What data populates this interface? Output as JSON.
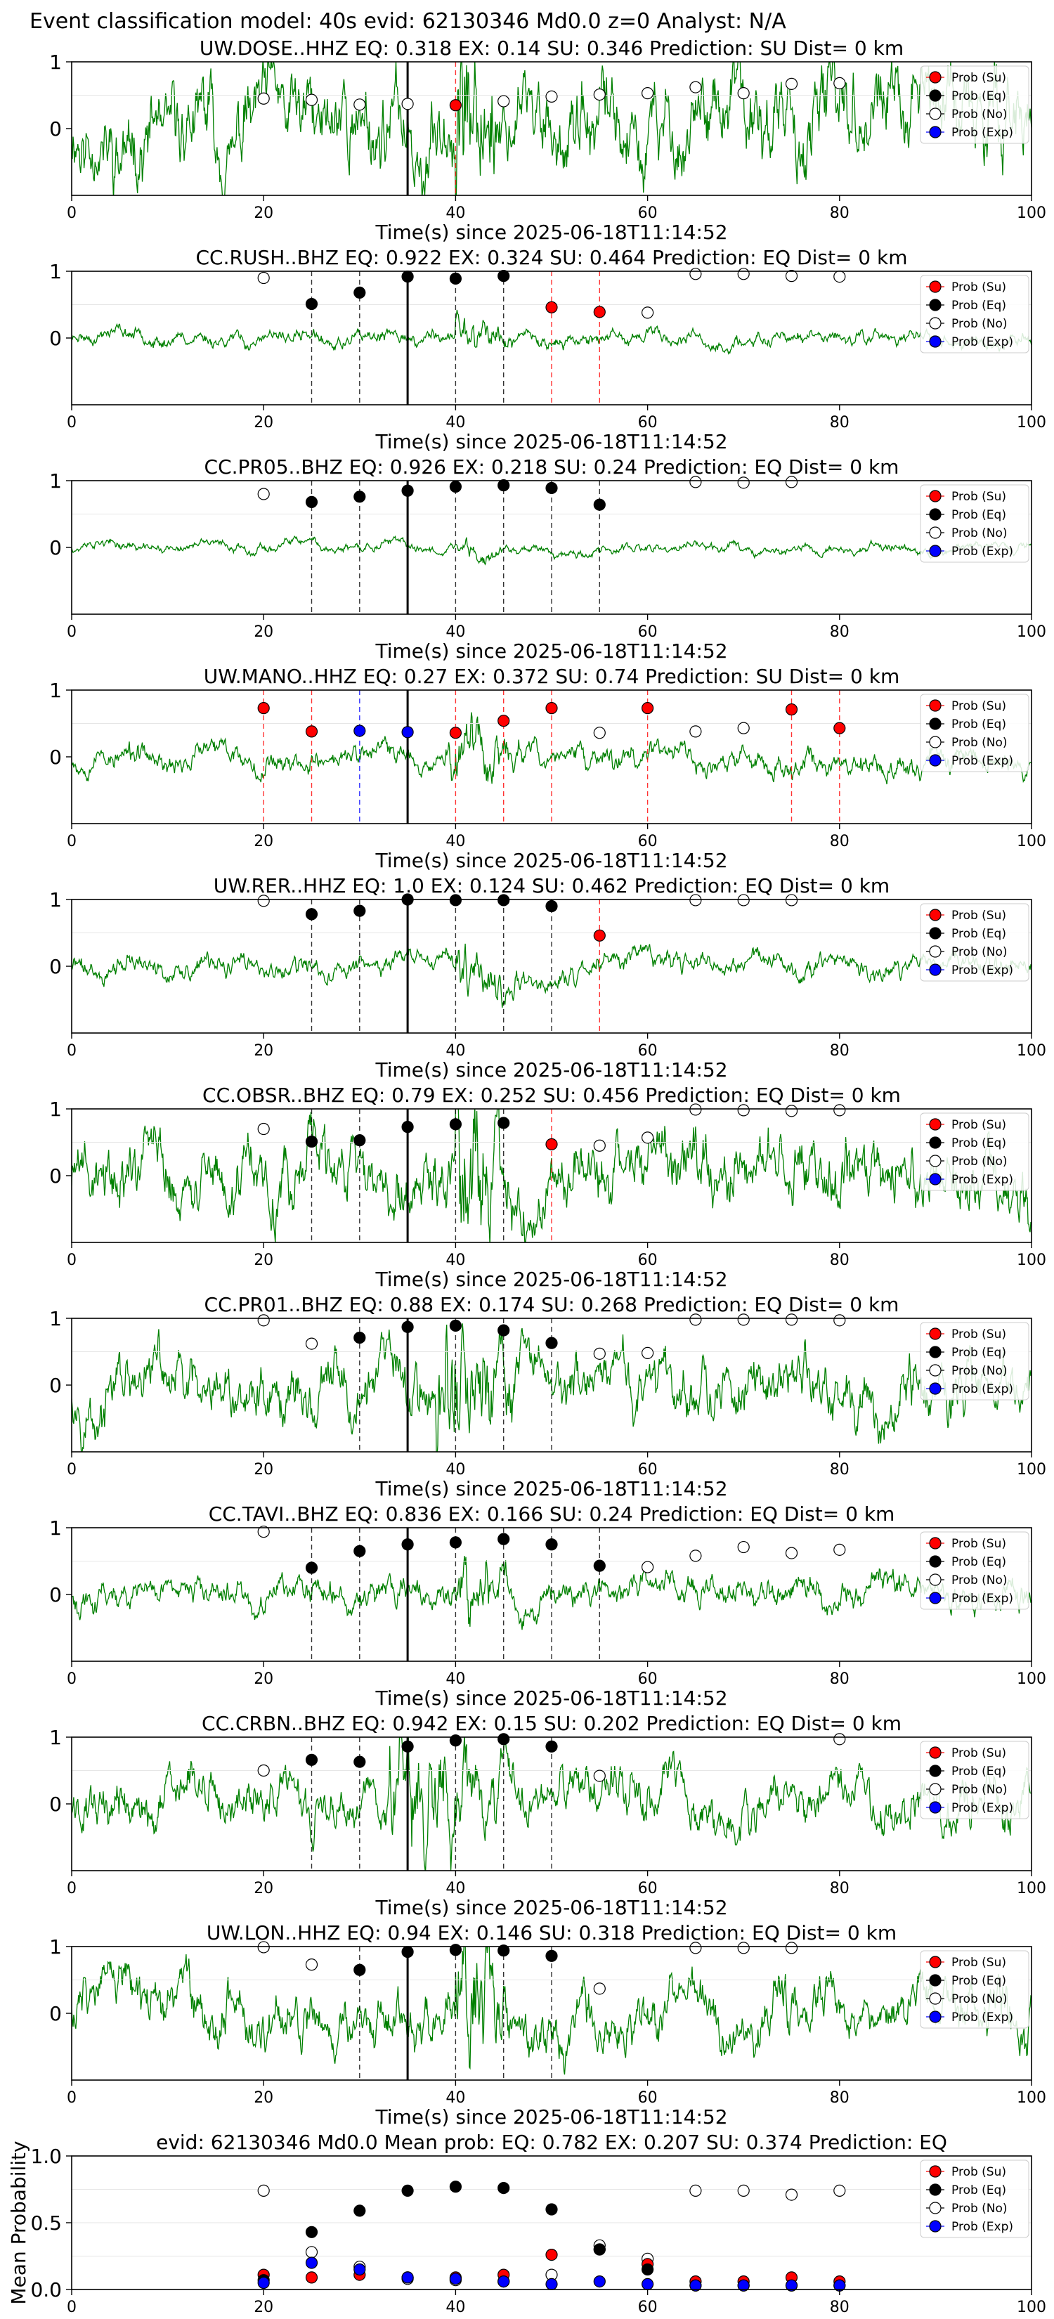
{
  "figure": {
    "suptitle": "Event classification model: 40s evid: 62130346 Md0.0 z=0 Analyst: N/A"
  },
  "legend": {
    "entries": [
      {
        "key": "su",
        "label": "Prob (Su)",
        "color": "#ff0000",
        "filled": true
      },
      {
        "key": "eq",
        "label": "Prob (Eq)",
        "color": "#000000",
        "filled": true
      },
      {
        "key": "no",
        "label": "Prob (No)",
        "color": "#ffffff",
        "filled": false
      },
      {
        "key": "exp",
        "label": "Prob (Exp)",
        "color": "#0000ff",
        "filled": true
      }
    ]
  },
  "colors": {
    "waveform": "#008000",
    "su": "#ff0000",
    "eq": "#000000",
    "exp": "#0000ff",
    "origin_line": "#000000"
  },
  "chart_data": [
    {
      "type": "line",
      "station": "UW.DOSE..HHZ",
      "title": "UW.DOSE..HHZ   EQ: 0.318  EX: 0.14  SU: 0.346   Prediction: SU    Dist= 0 km",
      "xlabel": "Time(s) since 2025-06-18T11:14:52",
      "xlim": [
        0,
        100
      ],
      "ylim": [
        -1,
        1
      ],
      "xticks": [
        "0",
        "20",
        "40",
        "60",
        "80",
        "100"
      ],
      "yticks": [
        "1",
        "0"
      ],
      "amplitude": 0.9,
      "seed": 11,
      "origin_time": 35,
      "burst": [
        [
          40,
          45
        ]
      ],
      "points": [
        {
          "t": 20,
          "p": 0.45,
          "c": "no"
        },
        {
          "t": 25,
          "p": 0.43,
          "c": "no"
        },
        {
          "t": 30,
          "p": 0.36,
          "c": "no"
        },
        {
          "t": 35,
          "p": 0.37,
          "c": "no"
        },
        {
          "t": 40,
          "p": 0.35,
          "c": "su"
        },
        {
          "t": 45,
          "p": 0.41,
          "c": "no"
        },
        {
          "t": 50,
          "p": 0.48,
          "c": "no"
        },
        {
          "t": 55,
          "p": 0.51,
          "c": "no"
        },
        {
          "t": 60,
          "p": 0.53,
          "c": "no"
        },
        {
          "t": 65,
          "p": 0.62,
          "c": "no"
        },
        {
          "t": 70,
          "p": 0.53,
          "c": "no"
        },
        {
          "t": 75,
          "p": 0.67,
          "c": "no"
        },
        {
          "t": 80,
          "p": 0.68,
          "c": "no"
        }
      ]
    },
    {
      "type": "line",
      "station": "CC.RUSH..BHZ",
      "title": "CC.RUSH..BHZ   EQ: 0.922  EX: 0.324  SU: 0.464   Prediction: EQ    Dist= 0 km",
      "xlabel": "Time(s) since 2025-06-18T11:14:52",
      "xlim": [
        0,
        100
      ],
      "ylim": [
        -1,
        1
      ],
      "xticks": [
        "0",
        "20",
        "40",
        "60",
        "80",
        "100"
      ],
      "yticks": [
        "1",
        "0"
      ],
      "amplitude": 0.15,
      "seed": 23,
      "origin_time": 35,
      "burst": [
        [
          40,
          46
        ]
      ],
      "points": [
        {
          "t": 20,
          "p": 0.9,
          "c": "no"
        },
        {
          "t": 25,
          "p": 0.51,
          "c": "eq"
        },
        {
          "t": 30,
          "p": 0.68,
          "c": "eq"
        },
        {
          "t": 35,
          "p": 0.92,
          "c": "eq"
        },
        {
          "t": 40,
          "p": 0.89,
          "c": "eq"
        },
        {
          "t": 45,
          "p": 0.93,
          "c": "eq"
        },
        {
          "t": 50,
          "p": 0.46,
          "c": "su"
        },
        {
          "t": 55,
          "p": 0.39,
          "c": "su"
        },
        {
          "t": 60,
          "p": 0.38,
          "c": "no"
        },
        {
          "t": 65,
          "p": 0.96,
          "c": "no"
        },
        {
          "t": 70,
          "p": 0.96,
          "c": "no"
        },
        {
          "t": 75,
          "p": 0.93,
          "c": "no"
        },
        {
          "t": 80,
          "p": 0.92,
          "c": "no"
        }
      ]
    },
    {
      "type": "line",
      "station": "CC.PR05..BHZ",
      "title": "CC.PR05..BHZ   EQ: 0.926  EX: 0.218  SU: 0.24   Prediction: EQ    Dist= 0 km",
      "xlabel": "Time(s) since 2025-06-18T11:14:52",
      "xlim": [
        0,
        100
      ],
      "ylim": [
        -1,
        1
      ],
      "xticks": [
        "0",
        "20",
        "40",
        "60",
        "80",
        "100"
      ],
      "yticks": [
        "1",
        "0"
      ],
      "amplitude": 0.1,
      "seed": 37,
      "origin_time": 35,
      "burst": [
        [
          41,
          45
        ]
      ],
      "points": [
        {
          "t": 20,
          "p": 0.8,
          "c": "no"
        },
        {
          "t": 25,
          "p": 0.68,
          "c": "eq"
        },
        {
          "t": 30,
          "p": 0.76,
          "c": "eq"
        },
        {
          "t": 35,
          "p": 0.85,
          "c": "eq"
        },
        {
          "t": 40,
          "p": 0.91,
          "c": "eq"
        },
        {
          "t": 45,
          "p": 0.93,
          "c": "eq"
        },
        {
          "t": 50,
          "p": 0.89,
          "c": "eq"
        },
        {
          "t": 55,
          "p": 0.64,
          "c": "eq"
        },
        {
          "t": 65,
          "p": 0.98,
          "c": "no"
        },
        {
          "t": 70,
          "p": 0.97,
          "c": "no"
        },
        {
          "t": 75,
          "p": 0.98,
          "c": "no"
        }
      ]
    },
    {
      "type": "line",
      "station": "UW.MANO..HHZ",
      "title": "UW.MANO..HHZ   EQ: 0.27  EX: 0.372  SU: 0.74   Prediction: SU    Dist= 0 km",
      "xlabel": "Time(s) since 2025-06-18T11:14:52",
      "xlim": [
        0,
        100
      ],
      "ylim": [
        -1,
        1
      ],
      "xticks": [
        "0",
        "20",
        "40",
        "60",
        "80",
        "100"
      ],
      "yticks": [
        "1",
        "0"
      ],
      "amplitude": 0.25,
      "seed": 53,
      "origin_time": 35,
      "burst": [
        [
          39,
          47
        ]
      ],
      "points": [
        {
          "t": 20,
          "p": 0.73,
          "c": "su"
        },
        {
          "t": 25,
          "p": 0.38,
          "c": "su"
        },
        {
          "t": 30,
          "p": 0.39,
          "c": "exp"
        },
        {
          "t": 35,
          "p": 0.37,
          "c": "exp"
        },
        {
          "t": 40,
          "p": 0.36,
          "c": "su"
        },
        {
          "t": 45,
          "p": 0.54,
          "c": "su"
        },
        {
          "t": 50,
          "p": 0.73,
          "c": "su"
        },
        {
          "t": 55,
          "p": 0.36,
          "c": "no"
        },
        {
          "t": 60,
          "p": 0.73,
          "c": "su"
        },
        {
          "t": 65,
          "p": 0.38,
          "c": "no"
        },
        {
          "t": 70,
          "p": 0.43,
          "c": "no"
        },
        {
          "t": 75,
          "p": 0.71,
          "c": "su"
        },
        {
          "t": 80,
          "p": 0.43,
          "c": "su"
        }
      ]
    },
    {
      "type": "line",
      "station": "UW.RER..HHZ",
      "title": "UW.RER..HHZ   EQ: 1.0  EX: 0.124  SU: 0.462   Prediction: EQ    Dist= 0 km",
      "xlabel": "Time(s) since 2025-06-18T11:14:52",
      "xlim": [
        0,
        100
      ],
      "ylim": [
        -1,
        1
      ],
      "xticks": [
        "0",
        "20",
        "40",
        "60",
        "80",
        "100"
      ],
      "yticks": [
        "1",
        "0"
      ],
      "amplitude": 0.22,
      "seed": 71,
      "origin_time": 35,
      "burst": [
        [
          40,
          47
        ]
      ],
      "points": [
        {
          "t": 20,
          "p": 0.98,
          "c": "no"
        },
        {
          "t": 25,
          "p": 0.78,
          "c": "eq"
        },
        {
          "t": 30,
          "p": 0.83,
          "c": "eq"
        },
        {
          "t": 35,
          "p": 1.0,
          "c": "eq"
        },
        {
          "t": 40,
          "p": 0.99,
          "c": "eq"
        },
        {
          "t": 45,
          "p": 0.99,
          "c": "eq"
        },
        {
          "t": 50,
          "p": 0.9,
          "c": "eq"
        },
        {
          "t": 55,
          "p": 0.46,
          "c": "su"
        },
        {
          "t": 65,
          "p": 0.99,
          "c": "no"
        },
        {
          "t": 70,
          "p": 0.99,
          "c": "no"
        },
        {
          "t": 75,
          "p": 0.99,
          "c": "no"
        }
      ]
    },
    {
      "type": "line",
      "station": "CC.OBSR..BHZ",
      "title": "CC.OBSR..BHZ   EQ: 0.79  EX: 0.252  SU: 0.456   Prediction: EQ    Dist= 0 km",
      "xlabel": "Time(s) since 2025-06-18T11:14:52",
      "xlim": [
        0,
        100
      ],
      "ylim": [
        -1,
        1
      ],
      "xticks": [
        "0",
        "20",
        "40",
        "60",
        "80",
        "100"
      ],
      "yticks": [
        "1",
        "0"
      ],
      "amplitude": 0.7,
      "seed": 89,
      "origin_time": 35,
      "burst": [
        [
          40,
          46
        ]
      ],
      "points": [
        {
          "t": 20,
          "p": 0.7,
          "c": "no"
        },
        {
          "t": 25,
          "p": 0.51,
          "c": "eq"
        },
        {
          "t": 30,
          "p": 0.53,
          "c": "eq"
        },
        {
          "t": 35,
          "p": 0.73,
          "c": "eq"
        },
        {
          "t": 40,
          "p": 0.77,
          "c": "eq"
        },
        {
          "t": 45,
          "p": 0.79,
          "c": "eq"
        },
        {
          "t": 50,
          "p": 0.47,
          "c": "su"
        },
        {
          "t": 55,
          "p": 0.45,
          "c": "no"
        },
        {
          "t": 60,
          "p": 0.57,
          "c": "no"
        },
        {
          "t": 65,
          "p": 0.99,
          "c": "no"
        },
        {
          "t": 70,
          "p": 0.98,
          "c": "no"
        },
        {
          "t": 75,
          "p": 0.97,
          "c": "no"
        },
        {
          "t": 80,
          "p": 0.98,
          "c": "no"
        }
      ]
    },
    {
      "type": "line",
      "station": "CC.PR01..BHZ",
      "title": "CC.PR01..BHZ   EQ: 0.88  EX: 0.174  SU: 0.268   Prediction: EQ    Dist= 0 km",
      "xlabel": "Time(s) since 2025-06-18T11:14:52",
      "xlim": [
        0,
        100
      ],
      "ylim": [
        -1,
        1
      ],
      "xticks": [
        "0",
        "20",
        "40",
        "60",
        "80",
        "100"
      ],
      "yticks": [
        "1",
        "0"
      ],
      "amplitude": 0.6,
      "seed": 97,
      "origin_time": 35,
      "burst": [
        [
          38,
          46
        ]
      ],
      "points": [
        {
          "t": 20,
          "p": 0.97,
          "c": "no"
        },
        {
          "t": 25,
          "p": 0.62,
          "c": "no"
        },
        {
          "t": 30,
          "p": 0.71,
          "c": "eq"
        },
        {
          "t": 35,
          "p": 0.87,
          "c": "eq"
        },
        {
          "t": 40,
          "p": 0.89,
          "c": "eq"
        },
        {
          "t": 45,
          "p": 0.82,
          "c": "eq"
        },
        {
          "t": 50,
          "p": 0.63,
          "c": "eq"
        },
        {
          "t": 55,
          "p": 0.47,
          "c": "no"
        },
        {
          "t": 60,
          "p": 0.48,
          "c": "no"
        },
        {
          "t": 65,
          "p": 0.98,
          "c": "no"
        },
        {
          "t": 70,
          "p": 0.98,
          "c": "no"
        },
        {
          "t": 75,
          "p": 0.98,
          "c": "no"
        },
        {
          "t": 80,
          "p": 0.97,
          "c": "no"
        }
      ]
    },
    {
      "type": "line",
      "station": "CC.TAVI..BHZ",
      "title": "CC.TAVI..BHZ   EQ: 0.836  EX: 0.166  SU: 0.24   Prediction: EQ    Dist= 0 km",
      "xlabel": "Time(s) since 2025-06-18T11:14:52",
      "xlim": [
        0,
        100
      ],
      "ylim": [
        -1,
        1
      ],
      "xticks": [
        "0",
        "20",
        "40",
        "60",
        "80",
        "100"
      ],
      "yticks": [
        "1",
        "0"
      ],
      "amplitude": 0.3,
      "seed": 113,
      "origin_time": 35,
      "burst": [
        [
          40,
          46
        ]
      ],
      "points": [
        {
          "t": 20,
          "p": 0.94,
          "c": "no"
        },
        {
          "t": 25,
          "p": 0.4,
          "c": "eq"
        },
        {
          "t": 30,
          "p": 0.65,
          "c": "eq"
        },
        {
          "t": 35,
          "p": 0.75,
          "c": "eq"
        },
        {
          "t": 40,
          "p": 0.78,
          "c": "eq"
        },
        {
          "t": 45,
          "p": 0.83,
          "c": "eq"
        },
        {
          "t": 50,
          "p": 0.75,
          "c": "eq"
        },
        {
          "t": 55,
          "p": 0.43,
          "c": "eq"
        },
        {
          "t": 60,
          "p": 0.41,
          "c": "no"
        },
        {
          "t": 65,
          "p": 0.58,
          "c": "no"
        },
        {
          "t": 70,
          "p": 0.71,
          "c": "no"
        },
        {
          "t": 75,
          "p": 0.62,
          "c": "no"
        },
        {
          "t": 80,
          "p": 0.67,
          "c": "no"
        }
      ]
    },
    {
      "type": "line",
      "station": "CC.CRBN..BHZ",
      "title": "CC.CRBN..BHZ   EQ: 0.942  EX: 0.15  SU: 0.202   Prediction: EQ    Dist= 0 km",
      "xlabel": "Time(s) since 2025-06-18T11:14:52",
      "xlim": [
        0,
        100
      ],
      "ylim": [
        -1,
        1
      ],
      "xticks": [
        "0",
        "20",
        "40",
        "60",
        "80",
        "100"
      ],
      "yticks": [
        "1",
        "0"
      ],
      "amplitude": 0.5,
      "seed": 131,
      "origin_time": 35,
      "burst": [
        [
          33,
          46
        ]
      ],
      "points": [
        {
          "t": 20,
          "p": 0.5,
          "c": "no"
        },
        {
          "t": 25,
          "p": 0.66,
          "c": "eq"
        },
        {
          "t": 30,
          "p": 0.63,
          "c": "eq"
        },
        {
          "t": 35,
          "p": 0.86,
          "c": "eq"
        },
        {
          "t": 40,
          "p": 0.95,
          "c": "eq"
        },
        {
          "t": 45,
          "p": 0.97,
          "c": "eq"
        },
        {
          "t": 50,
          "p": 0.86,
          "c": "eq"
        },
        {
          "t": 55,
          "p": 0.42,
          "c": "no"
        },
        {
          "t": 80,
          "p": 0.97,
          "c": "no"
        }
      ]
    },
    {
      "type": "line",
      "station": "UW.LON..HHZ",
      "title": "UW.LON..HHZ   EQ: 0.94  EX: 0.146  SU: 0.318   Prediction: EQ    Dist= 0 km",
      "xlabel": "Time(s) since 2025-06-18T11:14:52",
      "xlim": [
        0,
        100
      ],
      "ylim": [
        -1,
        1
      ],
      "xticks": [
        "0",
        "20",
        "40",
        "60",
        "80",
        "100"
      ],
      "yticks": [
        "1",
        "0"
      ],
      "amplitude": 0.55,
      "seed": 151,
      "origin_time": 35,
      "burst": [
        [
          40,
          46
        ]
      ],
      "points": [
        {
          "t": 20,
          "p": 0.99,
          "c": "no"
        },
        {
          "t": 25,
          "p": 0.73,
          "c": "no"
        },
        {
          "t": 30,
          "p": 0.65,
          "c": "eq"
        },
        {
          "t": 35,
          "p": 0.92,
          "c": "eq"
        },
        {
          "t": 40,
          "p": 0.95,
          "c": "eq"
        },
        {
          "t": 45,
          "p": 0.94,
          "c": "eq"
        },
        {
          "t": 50,
          "p": 0.86,
          "c": "eq"
        },
        {
          "t": 55,
          "p": 0.37,
          "c": "no"
        },
        {
          "t": 65,
          "p": 0.98,
          "c": "no"
        },
        {
          "t": 70,
          "p": 0.98,
          "c": "no"
        },
        {
          "t": 75,
          "p": 0.98,
          "c": "no"
        }
      ]
    },
    {
      "type": "scatter",
      "kind": "summary",
      "title": "evid: 62130346  Md0.0   Mean prob:   EQ: 0.782  EX: 0.207  SU: 0.374   Prediction: EQ",
      "xlabel": "",
      "ylabel": "Mean Probability",
      "xlim": [
        0,
        100
      ],
      "ylim": [
        0,
        1
      ],
      "xticks": [
        "0",
        "20",
        "40",
        "60",
        "80",
        "100"
      ],
      "yticks": [
        "0.0",
        "0.5",
        "1.0"
      ],
      "x": [
        20,
        25,
        30,
        35,
        40,
        45,
        50,
        55,
        60,
        65,
        70,
        75,
        80
      ],
      "series": [
        {
          "name": "Prob (Su)",
          "c": "su",
          "values": [
            0.11,
            0.09,
            0.11,
            0.09,
            0.09,
            0.11,
            0.26,
            0.3,
            0.19,
            0.06,
            0.06,
            0.09,
            0.06
          ]
        },
        {
          "name": "Prob (Eq)",
          "c": "eq",
          "values": [
            0.07,
            0.43,
            0.59,
            0.74,
            0.77,
            0.76,
            0.6,
            0.3,
            0.15,
            0.03,
            0.03,
            0.03,
            0.03
          ]
        },
        {
          "name": "Prob (No)",
          "c": "no",
          "values": [
            0.74,
            0.28,
            0.17,
            0.08,
            0.07,
            0.06,
            0.11,
            0.33,
            0.23,
            0.74,
            0.74,
            0.71,
            0.74
          ]
        },
        {
          "name": "Prob (Exp)",
          "c": "exp",
          "values": [
            0.05,
            0.2,
            0.15,
            0.09,
            0.08,
            0.06,
            0.04,
            0.06,
            0.04,
            0.03,
            0.03,
            0.03,
            0.03
          ]
        }
      ]
    }
  ]
}
